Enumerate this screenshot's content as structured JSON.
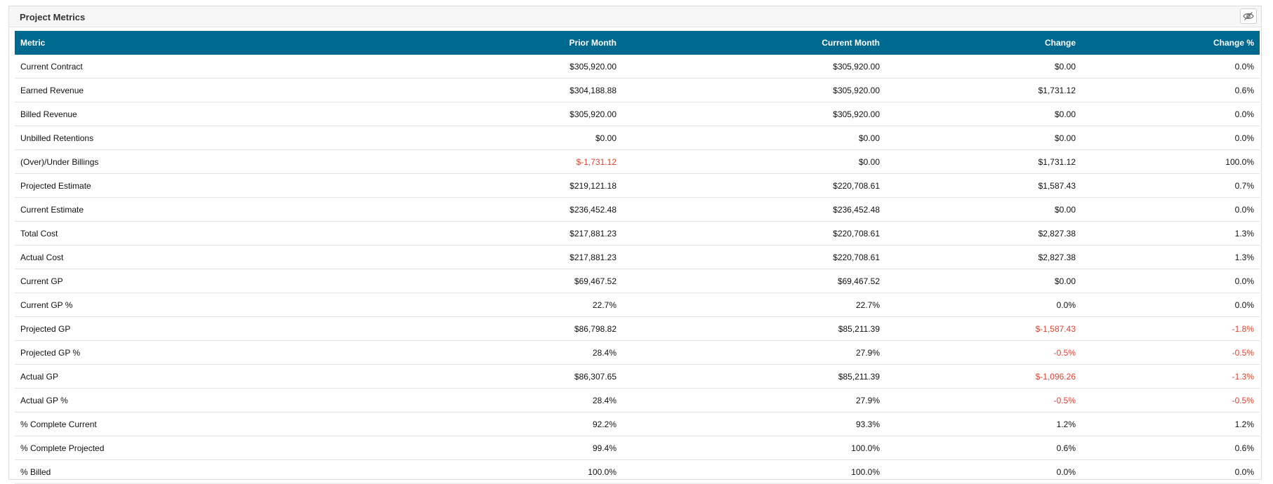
{
  "panel": {
    "title": "Project Metrics",
    "hide_icon": "eye-off-icon"
  },
  "colors": {
    "header_bg": "#00698f",
    "negative": "#e0412c"
  },
  "table": {
    "columns": [
      "Metric",
      "Prior Month",
      "Current Month",
      "Change",
      "Change %"
    ],
    "rows": [
      {
        "metric": "Current Contract",
        "prior": "$305,920.00",
        "current": "$305,920.00",
        "change": "$0.00",
        "change_pct": "0.0%"
      },
      {
        "metric": "Earned Revenue",
        "prior": "$304,188.88",
        "current": "$305,920.00",
        "change": "$1,731.12",
        "change_pct": "0.6%"
      },
      {
        "metric": "Billed Revenue",
        "prior": "$305,920.00",
        "current": "$305,920.00",
        "change": "$0.00",
        "change_pct": "0.0%"
      },
      {
        "metric": "Unbilled Retentions",
        "prior": "$0.00",
        "current": "$0.00",
        "change": "$0.00",
        "change_pct": "0.0%"
      },
      {
        "metric": "(Over)/Under Billings",
        "prior": "$-1,731.12",
        "current": "$0.00",
        "change": "$1,731.12",
        "change_pct": "100.0%"
      },
      {
        "metric": "Projected Estimate",
        "prior": "$219,121.18",
        "current": "$220,708.61",
        "change": "$1,587.43",
        "change_pct": "0.7%"
      },
      {
        "metric": "Current Estimate",
        "prior": "$236,452.48",
        "current": "$236,452.48",
        "change": "$0.00",
        "change_pct": "0.0%"
      },
      {
        "metric": "Total Cost",
        "prior": "$217,881.23",
        "current": "$220,708.61",
        "change": "$2,827.38",
        "change_pct": "1.3%"
      },
      {
        "metric": "Actual Cost",
        "prior": "$217,881.23",
        "current": "$220,708.61",
        "change": "$2,827.38",
        "change_pct": "1.3%"
      },
      {
        "metric": "Current GP",
        "prior": "$69,467.52",
        "current": "$69,467.52",
        "change": "$0.00",
        "change_pct": "0.0%"
      },
      {
        "metric": "Current GP %",
        "prior": "22.7%",
        "current": "22.7%",
        "change": "0.0%",
        "change_pct": "0.0%"
      },
      {
        "metric": "Projected GP",
        "prior": "$86,798.82",
        "current": "$85,211.39",
        "change": "$-1,587.43",
        "change_pct": "-1.8%"
      },
      {
        "metric": "Projected GP %",
        "prior": "28.4%",
        "current": "27.9%",
        "change": "-0.5%",
        "change_pct": "-0.5%"
      },
      {
        "metric": "Actual GP",
        "prior": "$86,307.65",
        "current": "$85,211.39",
        "change": "$-1,096.26",
        "change_pct": "-1.3%"
      },
      {
        "metric": "Actual GP %",
        "prior": "28.4%",
        "current": "27.9%",
        "change": "-0.5%",
        "change_pct": "-0.5%"
      },
      {
        "metric": "% Complete Current",
        "prior": "92.2%",
        "current": "93.3%",
        "change": "1.2%",
        "change_pct": "1.2%"
      },
      {
        "metric": "% Complete Projected",
        "prior": "99.4%",
        "current": "100.0%",
        "change": "0.6%",
        "change_pct": "0.6%"
      },
      {
        "metric": "% Billed",
        "prior": "100.0%",
        "current": "100.0%",
        "change": "0.0%",
        "change_pct": "0.0%"
      }
    ]
  }
}
